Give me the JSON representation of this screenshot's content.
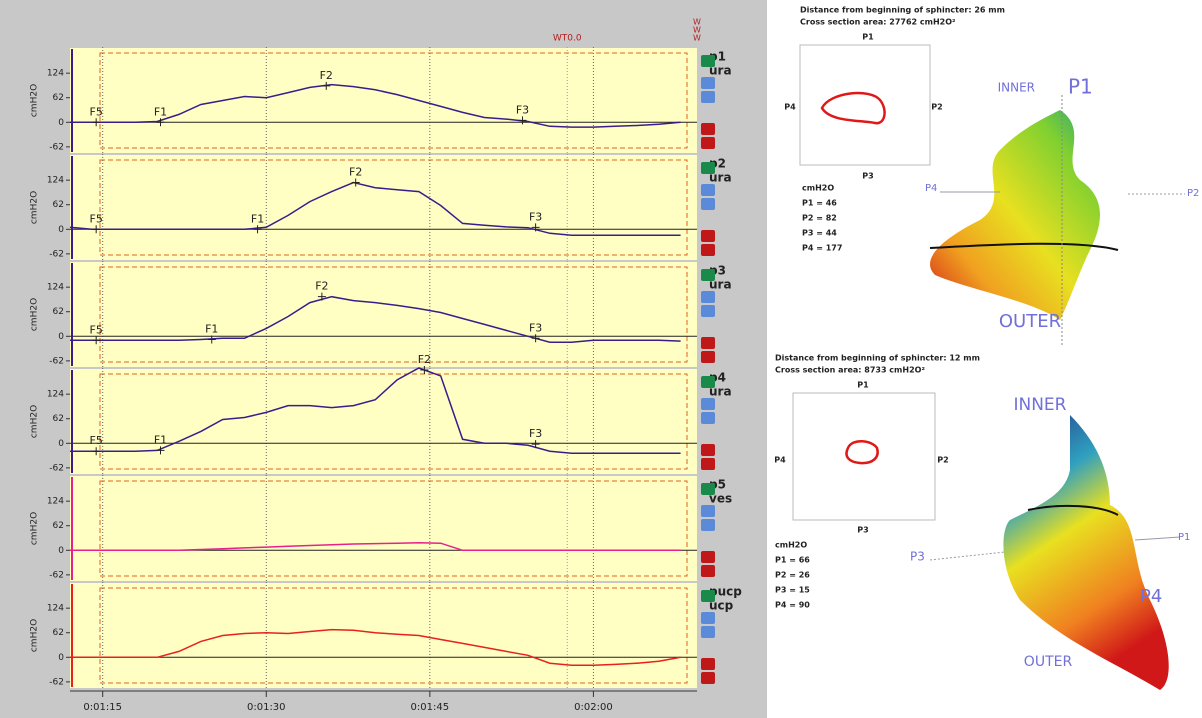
{
  "chart_data": [
    {
      "type": "line",
      "ylabel": "cmH2O",
      "channel_type": "ura",
      "x": [
        72,
        74,
        76,
        78,
        80,
        82,
        84,
        86,
        88,
        90,
        92,
        94,
        96,
        98,
        100,
        102,
        104,
        106,
        108,
        110,
        112,
        114,
        116,
        118,
        120,
        122,
        124,
        126,
        128
      ],
      "xlim": [
        72,
        129.5
      ],
      "ylim": [
        -80,
        190
      ],
      "yticks": [
        -62,
        0,
        62,
        124
      ],
      "series": [
        {
          "name": "p1",
          "color": "#3c1c8c",
          "values": [
            0,
            0,
            0,
            0,
            2,
            20,
            45,
            55,
            65,
            62,
            75,
            88,
            95,
            90,
            82,
            70,
            55,
            40,
            25,
            12,
            8,
            2,
            -10,
            -12,
            -12,
            -10,
            -8,
            -5,
            0
          ]
        }
      ],
      "markers": [
        {
          "label": "F5",
          "x": 74.4,
          "y": 0
        },
        {
          "label": "F1",
          "x": 80.3,
          "y": 0
        },
        {
          "label": "F2",
          "x": 95.5,
          "y": 92
        },
        {
          "label": "F3",
          "x": 113.5,
          "y": 5
        }
      ]
    },
    {
      "type": "line",
      "ylabel": "cmH2O",
      "channel_type": "ura",
      "x": [
        72,
        74,
        76,
        78,
        80,
        82,
        84,
        86,
        88,
        90,
        92,
        94,
        96,
        98,
        100,
        102,
        104,
        106,
        108,
        110,
        112,
        114,
        116,
        118,
        120,
        122,
        124,
        126,
        128
      ],
      "xlim": [
        72,
        129.5
      ],
      "ylim": [
        -80,
        190
      ],
      "yticks": [
        -62,
        0,
        62,
        124
      ],
      "series": [
        {
          "name": "p2",
          "color": "#3c1c8c",
          "values": [
            5,
            0,
            0,
            0,
            0,
            0,
            0,
            0,
            0,
            5,
            35,
            70,
            95,
            118,
            105,
            100,
            95,
            60,
            15,
            10,
            6,
            4,
            -10,
            -15,
            -15,
            -15,
            -15,
            -15,
            -15
          ]
        }
      ],
      "markers": [
        {
          "label": "F5",
          "x": 74.4,
          "y": 0
        },
        {
          "label": "F1",
          "x": 89.2,
          "y": 0
        },
        {
          "label": "F2",
          "x": 98.2,
          "y": 118
        },
        {
          "label": "F3",
          "x": 114.7,
          "y": 5
        }
      ]
    },
    {
      "type": "line",
      "ylabel": "cmH2O",
      "channel_type": "ura",
      "x": [
        72,
        74,
        76,
        78,
        80,
        82,
        84,
        86,
        88,
        90,
        92,
        94,
        96,
        98,
        100,
        102,
        104,
        106,
        108,
        110,
        112,
        114,
        116,
        118,
        120,
        122,
        124,
        126,
        128
      ],
      "xlim": [
        72,
        129.5
      ],
      "ylim": [
        -80,
        190
      ],
      "yticks": [
        -62,
        0,
        62,
        124
      ],
      "series": [
        {
          "name": "p3",
          "color": "#3c1c8c",
          "values": [
            -10,
            -10,
            -10,
            -10,
            -10,
            -10,
            -8,
            -5,
            -5,
            20,
            50,
            85,
            100,
            90,
            85,
            78,
            70,
            60,
            45,
            30,
            15,
            0,
            -15,
            -15,
            -10,
            -10,
            -10,
            -10,
            -12
          ]
        }
      ],
      "markers": [
        {
          "label": "F5",
          "x": 74.4,
          "y": -10
        },
        {
          "label": "F1",
          "x": 85.0,
          "y": -8
        },
        {
          "label": "F2",
          "x": 95.1,
          "y": 100
        },
        {
          "label": "F3",
          "x": 114.7,
          "y": -5
        }
      ]
    },
    {
      "type": "line",
      "ylabel": "cmH2O",
      "channel_type": "ura",
      "x": [
        72,
        74,
        76,
        78,
        80,
        82,
        84,
        86,
        88,
        90,
        92,
        94,
        96,
        98,
        100,
        102,
        104,
        106,
        108,
        110,
        112,
        114,
        116,
        118,
        120,
        122,
        124,
        126,
        128
      ],
      "xlim": [
        72,
        129.5
      ],
      "ylim": [
        -80,
        190
      ],
      "yticks": [
        -62,
        0,
        62,
        124
      ],
      "series": [
        {
          "name": "p4",
          "color": "#3c1c8c",
          "values": [
            -20,
            -20,
            -20,
            -20,
            -18,
            5,
            30,
            60,
            65,
            78,
            95,
            95,
            90,
            95,
            110,
            160,
            190,
            170,
            10,
            0,
            0,
            -5,
            -20,
            -25,
            -25,
            -25,
            -25,
            -25,
            -25
          ]
        }
      ],
      "markers": [
        {
          "label": "F5",
          "x": 74.4,
          "y": -20
        },
        {
          "label": "F1",
          "x": 80.3,
          "y": -18
        },
        {
          "label": "F2",
          "x": 104.5,
          "y": 185
        },
        {
          "label": "F3",
          "x": 114.7,
          "y": -2
        }
      ]
    },
    {
      "type": "line",
      "ylabel": "cmH2O",
      "channel_type": "ves",
      "x": [
        72,
        74,
        76,
        78,
        80,
        82,
        84,
        86,
        88,
        90,
        92,
        94,
        96,
        98,
        100,
        102,
        104,
        106,
        108,
        110,
        112,
        114,
        116,
        118,
        120,
        122,
        124,
        126,
        128
      ],
      "xlim": [
        72,
        129.5
      ],
      "ylim": [
        -80,
        190
      ],
      "yticks": [
        -62,
        0,
        62,
        124
      ],
      "series": [
        {
          "name": "p5",
          "color": "#e8208c",
          "values": [
            0,
            0,
            0,
            0,
            0,
            0,
            2,
            4,
            6,
            8,
            10,
            12,
            14,
            16,
            17,
            18,
            19,
            18,
            0,
            0,
            0,
            0,
            0,
            0,
            0,
            0,
            0,
            0,
            0
          ]
        }
      ],
      "markers": []
    },
    {
      "type": "line",
      "ylabel": "cmH2O",
      "channel_type": "ucp",
      "x": [
        72,
        74,
        76,
        78,
        80,
        82,
        84,
        86,
        88,
        90,
        92,
        94,
        96,
        98,
        100,
        102,
        104,
        106,
        108,
        110,
        112,
        114,
        116,
        118,
        120,
        122,
        124,
        126,
        128
      ],
      "xlim": [
        72,
        129.5
      ],
      "ylim": [
        -80,
        190
      ],
      "yticks": [
        -62,
        0,
        62,
        124
      ],
      "series": [
        {
          "name": "pucp",
          "color": "#e82020",
          "values": [
            0,
            0,
            0,
            0,
            0,
            15,
            40,
            55,
            60,
            62,
            60,
            65,
            70,
            68,
            62,
            58,
            55,
            45,
            35,
            25,
            15,
            5,
            -15,
            -20,
            -20,
            -18,
            -15,
            -10,
            0
          ]
        }
      ],
      "markers": [],
      "xticks": [
        {
          "value": 75,
          "label": "0:01:15"
        },
        {
          "value": 90,
          "label": "0:01:30"
        },
        {
          "value": 105,
          "label": "0:01:45"
        },
        {
          "value": 120,
          "label": "0:02:00"
        }
      ]
    }
  ],
  "cursor": {
    "label": "WT0.0",
    "x": 117.6
  },
  "window_marks": [
    "W",
    "W",
    "W"
  ],
  "cross_sections": [
    {
      "distance": "Distance from beginning of sphincter: 26 mm",
      "area": "Cross section area: 27762 cmH2O²",
      "box_labels": [
        "P1",
        "P2",
        "P3",
        "P4"
      ],
      "unit": "cmH2O",
      "readings": [
        "P1 = 46",
        "P2 = 82",
        "P3 = 44",
        "P4 = 177"
      ],
      "model_labels": [
        "INNER",
        "P1",
        "P4",
        "P2",
        "OUTER"
      ]
    },
    {
      "distance": "Distance from beginning of sphincter: 12 mm",
      "area": "Cross section area: 8733 cmH2O²",
      "box_labels": [
        "P1",
        "P2",
        "P3",
        "P4"
      ],
      "unit": "cmH2O",
      "readings": [
        "P1 = 66",
        "P2 = 26",
        "P3 = 15",
        "P4 = 90"
      ],
      "model_labels": [
        "INNER",
        "P1",
        "P3",
        "P4",
        "OUTER"
      ]
    }
  ]
}
